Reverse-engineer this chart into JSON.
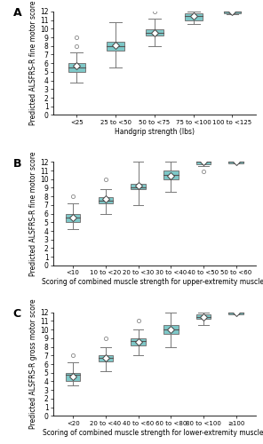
{
  "panel_A": {
    "title": "A",
    "xlabel": "Handgrip strength (lbs)",
    "ylabel": "Predicted ALSFRS-R fine motor score",
    "categories": [
      "<25",
      "25 to <50",
      "50 to <75",
      "75 to <100",
      "100 to <125"
    ],
    "boxes": [
      {
        "q1": 5.0,
        "median": 5.5,
        "q3": 6.0,
        "whisker_low": 3.8,
        "whisker_high": 7.2,
        "mean": 5.7,
        "outliers": [
          8.0,
          9.0
        ]
      },
      {
        "q1": 7.5,
        "median": 8.0,
        "q3": 8.5,
        "whisker_low": 5.5,
        "whisker_high": 10.8,
        "mean": 8.1,
        "outliers": []
      },
      {
        "q1": 9.2,
        "median": 9.5,
        "q3": 9.9,
        "whisker_low": 8.0,
        "whisker_high": 11.2,
        "mean": 9.5,
        "outliers": [
          12.0
        ]
      },
      {
        "q1": 11.0,
        "median": 11.5,
        "q3": 11.8,
        "whisker_low": 10.5,
        "whisker_high": 12.0,
        "mean": 11.5,
        "outliers": []
      },
      {
        "q1": 11.8,
        "median": 12.0,
        "q3": 12.0,
        "whisker_low": 11.7,
        "whisker_high": 12.0,
        "mean": 12.0,
        "outliers": []
      }
    ],
    "ylim": [
      0,
      12
    ],
    "yticks": [
      0,
      1,
      2,
      3,
      4,
      5,
      6,
      7,
      8,
      9,
      10,
      11,
      12
    ]
  },
  "panel_B": {
    "title": "B",
    "xlabel": "Scoring of combined muscle strength for upper-extremity muscles",
    "ylabel": "Predicted ALSFRS-R fine motor score",
    "categories": [
      "<10",
      "10 to <20",
      "20 to <30",
      "30 to <40",
      "40 to <50",
      "50 to <60"
    ],
    "boxes": [
      {
        "q1": 5.0,
        "median": 5.5,
        "q3": 6.0,
        "whisker_low": 4.2,
        "whisker_high": 7.2,
        "mean": 5.5,
        "outliers": [
          8.0
        ]
      },
      {
        "q1": 7.2,
        "median": 7.5,
        "q3": 7.9,
        "whisker_low": 6.0,
        "whisker_high": 8.8,
        "mean": 7.7,
        "outliers": [
          10.0
        ]
      },
      {
        "q1": 8.8,
        "median": 9.0,
        "q3": 9.5,
        "whisker_low": 7.0,
        "whisker_high": 12.0,
        "mean": 9.3,
        "outliers": []
      },
      {
        "q1": 10.0,
        "median": 10.5,
        "q3": 11.0,
        "whisker_low": 8.5,
        "whisker_high": 12.0,
        "mean": 10.4,
        "outliers": []
      },
      {
        "q1": 11.7,
        "median": 12.0,
        "q3": 12.0,
        "whisker_low": 11.5,
        "whisker_high": 12.0,
        "mean": 12.0,
        "outliers": [
          10.9
        ]
      },
      {
        "q1": 11.8,
        "median": 12.0,
        "q3": 12.0,
        "whisker_low": 11.8,
        "whisker_high": 12.0,
        "mean": 12.0,
        "outliers": []
      }
    ],
    "ylim": [
      0,
      12
    ],
    "yticks": [
      0,
      1,
      2,
      3,
      4,
      5,
      6,
      7,
      8,
      9,
      10,
      11,
      12
    ]
  },
  "panel_C": {
    "title": "C",
    "xlabel": "Scoring of combined muscle strength for lower-extremity muscles",
    "ylabel": "Predicted ALSFRS-R gross motor score",
    "categories": [
      "<20",
      "20 to <40",
      "40 to <60",
      "60 to <80",
      "80 to <100",
      "≥100"
    ],
    "boxes": [
      {
        "q1": 4.0,
        "median": 4.8,
        "q3": 5.0,
        "whisker_low": 3.5,
        "whisker_high": 6.2,
        "mean": 4.6,
        "outliers": [
          7.0
        ]
      },
      {
        "q1": 6.3,
        "median": 6.7,
        "q3": 7.0,
        "whisker_low": 5.2,
        "whisker_high": 8.0,
        "mean": 6.7,
        "outliers": [
          9.0
        ]
      },
      {
        "q1": 8.2,
        "median": 8.7,
        "q3": 9.0,
        "whisker_low": 7.0,
        "whisker_high": 10.0,
        "mean": 8.6,
        "outliers": [
          11.0
        ]
      },
      {
        "q1": 9.5,
        "median": 10.0,
        "q3": 10.5,
        "whisker_low": 8.0,
        "whisker_high": 12.0,
        "mean": 10.0,
        "outliers": []
      },
      {
        "q1": 11.3,
        "median": 11.5,
        "q3": 11.8,
        "whisker_low": 10.5,
        "whisker_high": 12.0,
        "mean": 11.5,
        "outliers": []
      },
      {
        "q1": 11.8,
        "median": 12.0,
        "q3": 12.0,
        "whisker_low": 11.8,
        "whisker_high": 12.0,
        "mean": 12.0,
        "outliers": []
      }
    ],
    "ylim": [
      0,
      12
    ],
    "yticks": [
      0,
      1,
      2,
      3,
      4,
      5,
      6,
      7,
      8,
      9,
      10,
      11,
      12
    ]
  },
  "box_color": "#7EC8C8",
  "box_edge_color": "#777777",
  "whisker_color": "#777777",
  "median_color": "#555555",
  "mean_color": "white",
  "mean_edge_color": "#444444",
  "outlier_color": "#888888",
  "background_color": "white"
}
